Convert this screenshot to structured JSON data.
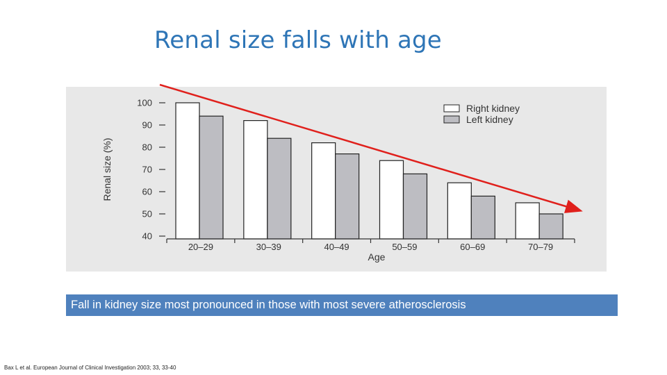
{
  "slide": {
    "title": "Renal size falls with age",
    "caption": "Fall in kidney size most pronounced in those with most severe atherosclerosis",
    "citation": "Bax L et al. European Journal of Clinical Investigation 2003; 33, 33-40"
  },
  "colors": {
    "title": "#2e75b6",
    "caption_bg": "#4f81bd",
    "panel_bg": "#e8e8e8",
    "right_kidney": "#ffffff",
    "left_kidney": "#bdbdc2",
    "trend_arrow": "#e0201c"
  },
  "chart_data": {
    "type": "bar",
    "xlabel": "Age",
    "ylabel": "Renal size (%)",
    "categories": [
      "20–29",
      "30–39",
      "40–49",
      "50–59",
      "60–69",
      "70–79"
    ],
    "series": [
      {
        "name": "Right kidney",
        "values": [
          100,
          92,
          82,
          74,
          64,
          55
        ]
      },
      {
        "name": "Left kidney",
        "values": [
          94,
          84,
          77,
          68,
          58,
          50
        ]
      }
    ],
    "ylim": [
      40,
      100
    ],
    "yticks": [
      100,
      90,
      80,
      70,
      60,
      50,
      40
    ],
    "legend_position": "top-right",
    "grid": false,
    "annotation": "red downward trend arrow"
  }
}
